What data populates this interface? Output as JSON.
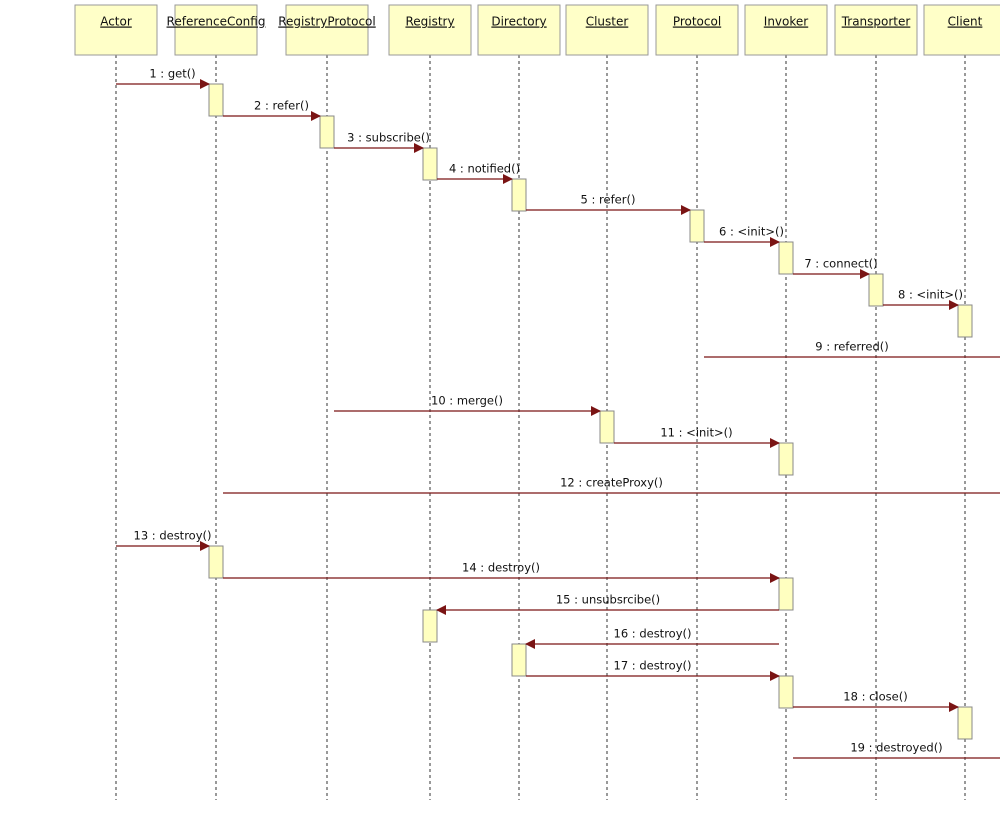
{
  "participants": [
    {
      "name": "Actor"
    },
    {
      "name": "ReferenceConfig"
    },
    {
      "name": "RegistryProtocol"
    },
    {
      "name": "Registry"
    },
    {
      "name": "Directory"
    },
    {
      "name": "Cluster"
    },
    {
      "name": "Protocol"
    },
    {
      "name": "Invoker"
    },
    {
      "name": "Transporter"
    },
    {
      "name": "Client"
    }
  ],
  "messages": [
    {
      "label": "1 : get()",
      "from": 0,
      "to": 1
    },
    {
      "label": "2 : refer()",
      "from": 1,
      "to": 2
    },
    {
      "label": "3 : subscribe()",
      "from": 2,
      "to": 3
    },
    {
      "label": "4 : notified()",
      "from": 3,
      "to": 4
    },
    {
      "label": "5 : refer()",
      "from": 4,
      "to": 6
    },
    {
      "label": "6 : <init>()",
      "from": 6,
      "to": 7
    },
    {
      "label": "7 : connect()",
      "from": 7,
      "to": 8
    },
    {
      "label": "8 : <init>()",
      "from": 8,
      "to": 9
    },
    {
      "label": "9 : referred()",
      "from": 6
    },
    {
      "label": "10 : merge()",
      "from": 2,
      "to": 5
    },
    {
      "label": "11 : <init>()",
      "from": 5,
      "to": 7
    },
    {
      "label": "12 : createProxy()",
      "from": 1
    },
    {
      "label": "13 : destroy()",
      "from": 0,
      "to": 1
    },
    {
      "label": "14 : destroy()",
      "from": 1,
      "to": 7
    },
    {
      "label": "15 : unsubsrcibe()",
      "from": 7,
      "to": 3
    },
    {
      "label": "16 : destroy()",
      "from": 7,
      "to": 4
    },
    {
      "label": "17 : destroy()",
      "from": 4,
      "to": 7
    },
    {
      "label": "18 : close()",
      "from": 7,
      "to": 9
    },
    {
      "label": "19 : destroyed()",
      "from": 7
    }
  ]
}
